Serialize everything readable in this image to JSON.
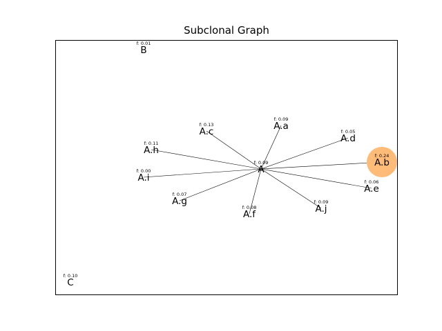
{
  "title": "Subclonal Graph",
  "highlight_color": "#ffbb78",
  "edge_color": "#000000",
  "hub": "A",
  "nodes": [
    {
      "id": "A",
      "label": "A",
      "freq": "f: 0.09"
    },
    {
      "id": "A.a",
      "label": "A.a",
      "freq": "f: 0.09"
    },
    {
      "id": "A.b",
      "label": "A.b",
      "freq": "f: 0.24",
      "highlight": true
    },
    {
      "id": "A.c",
      "label": "A.c",
      "freq": "f: 0.13"
    },
    {
      "id": "A.d",
      "label": "A.d",
      "freq": "f: 0.05"
    },
    {
      "id": "A.e",
      "label": "A.e",
      "freq": "f: 0.06"
    },
    {
      "id": "A.f",
      "label": "A.f",
      "freq": "f: 0.08"
    },
    {
      "id": "A.g",
      "label": "A.g",
      "freq": "f: 0.07"
    },
    {
      "id": "A.h",
      "label": "A.h",
      "freq": "f: 0.11"
    },
    {
      "id": "A.i",
      "label": "A.i",
      "freq": "f: 0.00"
    },
    {
      "id": "A.j",
      "label": "A.j",
      "freq": "f: 0.09"
    },
    {
      "id": "B",
      "label": "B",
      "freq": "f: 0.01"
    },
    {
      "id": "C",
      "label": "C",
      "freq": "f: 0.10"
    }
  ],
  "edges": [
    [
      "A",
      "A.a"
    ],
    [
      "A",
      "A.b"
    ],
    [
      "A",
      "A.c"
    ],
    [
      "A",
      "A.d"
    ],
    [
      "A",
      "A.e"
    ],
    [
      "A",
      "A.f"
    ],
    [
      "A",
      "A.g"
    ],
    [
      "A",
      "A.h"
    ],
    [
      "A",
      "A.i"
    ],
    [
      "A",
      "A.j"
    ]
  ]
}
